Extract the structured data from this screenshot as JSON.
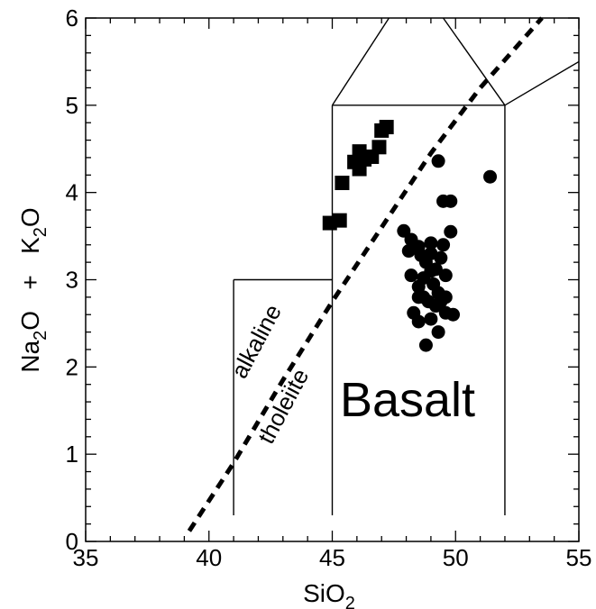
{
  "chart_data": {
    "type": "scatter",
    "title": "",
    "xlabel": {
      "main": "SiO",
      "sub": "2"
    },
    "ylabel": {
      "a": "Na",
      "a_sub": "2",
      "b": "O   +   K",
      "b_sub": "2",
      "c": "O"
    },
    "xlim": [
      35,
      55
    ],
    "ylim": [
      0,
      6
    ],
    "xticks": [
      35,
      40,
      45,
      50,
      55
    ],
    "yticks": [
      0,
      1,
      2,
      3,
      4,
      5,
      6
    ],
    "grid": false,
    "series": [
      {
        "marker": "square",
        "points": [
          [
            44.9,
            3.65
          ],
          [
            45.3,
            3.68
          ],
          [
            45.4,
            4.11
          ],
          [
            45.9,
            4.35
          ],
          [
            46.1,
            4.27
          ],
          [
            46.1,
            4.47
          ],
          [
            46.3,
            4.38
          ],
          [
            46.6,
            4.41
          ],
          [
            46.9,
            4.52
          ],
          [
            47.0,
            4.71
          ],
          [
            47.2,
            4.75
          ]
        ]
      },
      {
        "marker": "circle",
        "points": [
          [
            49.3,
            4.36
          ],
          [
            51.4,
            4.18
          ],
          [
            49.5,
            3.9
          ],
          [
            49.8,
            3.9
          ],
          [
            47.9,
            3.56
          ],
          [
            48.2,
            3.46
          ],
          [
            48.5,
            3.38
          ],
          [
            49.0,
            3.42
          ],
          [
            49.5,
            3.4
          ],
          [
            49.8,
            3.55
          ],
          [
            48.1,
            3.33
          ],
          [
            48.6,
            3.28
          ],
          [
            49.0,
            3.3
          ],
          [
            49.4,
            3.25
          ],
          [
            48.8,
            3.2
          ],
          [
            49.2,
            3.12
          ],
          [
            48.2,
            3.05
          ],
          [
            48.7,
            3.02
          ],
          [
            49.0,
            3.1
          ],
          [
            49.6,
            3.05
          ],
          [
            48.5,
            2.92
          ],
          [
            49.1,
            2.95
          ],
          [
            49.3,
            2.85
          ],
          [
            48.5,
            2.8
          ],
          [
            48.9,
            2.75
          ],
          [
            49.4,
            2.75
          ],
          [
            49.6,
            2.8
          ],
          [
            48.3,
            2.62
          ],
          [
            49.6,
            2.62
          ],
          [
            49.9,
            2.6
          ],
          [
            48.5,
            2.52
          ],
          [
            49.0,
            2.55
          ],
          [
            49.3,
            2.4
          ],
          [
            48.8,
            2.25
          ],
          [
            48.7,
            2.8
          ],
          [
            49.2,
            2.7
          ]
        ]
      }
    ],
    "annotations": {
      "field_label": "Basalt",
      "line_label_upper": "alkaline",
      "line_label_lower": "tholeiite"
    }
  }
}
